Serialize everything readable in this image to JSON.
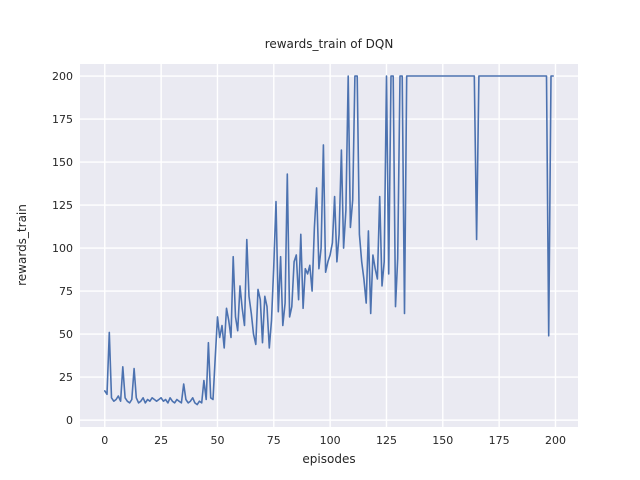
{
  "chart_data": {
    "type": "line",
    "title": "rewards_train of DQN",
    "xlabel": "episodes",
    "ylabel": "rewards_train",
    "x_start": 0,
    "xticks": [
      0,
      25,
      50,
      75,
      100,
      125,
      150,
      175,
      200
    ],
    "yticks": [
      0,
      25,
      50,
      75,
      100,
      125,
      150,
      175,
      200
    ],
    "xlim": [
      -11,
      210
    ],
    "ylim": [
      -4,
      207
    ],
    "grid": true,
    "legend": false,
    "colors": {
      "line": "#4c72b0",
      "plot_bg": "#eaeaf2",
      "grid": "#ffffff",
      "text": "#262626",
      "figure_bg": "#ffffff"
    },
    "values": [
      17,
      15,
      51,
      13,
      11,
      12,
      14,
      11,
      31,
      13,
      11,
      10,
      12,
      30,
      13,
      10,
      11,
      13,
      10,
      12,
      11,
      13,
      12,
      11,
      12,
      13,
      11,
      12,
      10,
      13,
      11,
      10,
      12,
      11,
      10,
      21,
      12,
      10,
      11,
      13,
      10,
      9,
      11,
      10,
      23,
      12,
      45,
      13,
      12,
      36,
      60,
      48,
      55,
      42,
      65,
      58,
      48,
      95,
      60,
      52,
      78,
      65,
      55,
      105,
      72,
      62,
      50,
      44,
      76,
      70,
      45,
      72,
      66,
      42,
      58,
      90,
      127,
      63,
      95,
      55,
      68,
      143,
      60,
      66,
      92,
      96,
      70,
      108,
      65,
      88,
      85,
      90,
      75,
      112,
      135,
      88,
      100,
      160,
      86,
      92,
      96,
      103,
      130,
      92,
      108,
      157,
      100,
      122,
      200,
      112,
      128,
      200,
      200,
      108,
      92,
      82,
      68,
      110,
      62,
      96,
      88,
      82,
      130,
      78,
      92,
      200,
      85,
      200,
      200,
      66,
      94,
      200,
      200,
      62,
      200,
      200,
      200,
      200,
      200,
      200,
      200,
      200,
      200,
      200,
      200,
      200,
      200,
      200,
      200,
      200,
      200,
      200,
      200,
      200,
      200,
      200,
      200,
      200,
      200,
      200,
      200,
      200,
      200,
      200,
      200,
      105,
      200,
      200,
      200,
      200,
      200,
      200,
      200,
      200,
      200,
      200,
      200,
      200,
      200,
      200,
      200,
      200,
      200,
      200,
      200,
      200,
      200,
      200,
      200,
      200,
      200,
      200,
      200,
      200,
      200,
      200,
      200,
      49,
      200,
      200
    ]
  }
}
